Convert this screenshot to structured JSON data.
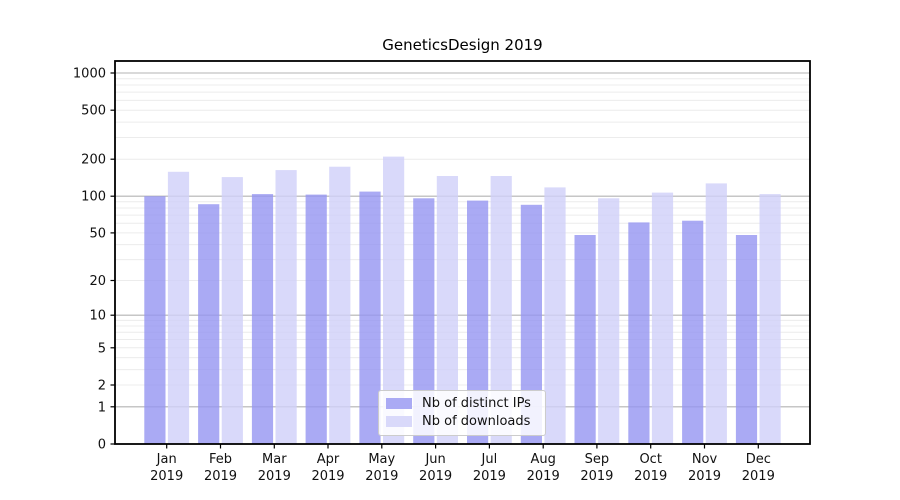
{
  "chart_data": {
    "type": "bar",
    "title": "GeneticsDesign 2019",
    "xlabel": "",
    "ylabel": "",
    "categories": [
      "Jan 2019",
      "Feb 2019",
      "Mar 2019",
      "Apr 2019",
      "May 2019",
      "Jun 2019",
      "Jul 2019",
      "Aug 2019",
      "Sep 2019",
      "Oct 2019",
      "Nov 2019",
      "Dec 2019"
    ],
    "series": [
      {
        "name": "Nb of distinct IPs",
        "color": "#aaaaf4",
        "values": [
          100,
          86,
          104,
          103,
          109,
          96,
          92,
          85,
          48,
          61,
          63,
          48
        ]
      },
      {
        "name": "Nb of downloads",
        "color": "#d9d9fa",
        "values": [
          158,
          143,
          163,
          174,
          210,
          146,
          146,
          118,
          96,
          107,
          127,
          104
        ]
      }
    ],
    "yticks": [
      0,
      1,
      2,
      5,
      10,
      20,
      50,
      100,
      200,
      500,
      1000
    ],
    "yscale": "log10(value+1)",
    "ylim": [
      0,
      1250
    ],
    "grid": "horizontal",
    "legend_position": "lower-center-inside",
    "colors": {
      "grid_major": "#b3b3b3",
      "grid_minor": "#ececec",
      "spine": "#000000",
      "text": "#111111",
      "background": "#ffffff"
    }
  }
}
